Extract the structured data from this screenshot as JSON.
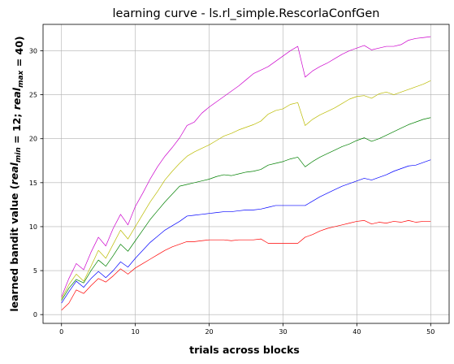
{
  "chart_data": {
    "type": "line",
    "title": "learning curve - ls.rl_simple.RescorlaConfGen",
    "xlabel": "trials across blocks",
    "ylabel": "learned bandit value (real_min = 12; real_max = 40)",
    "xlim": [
      -2.5,
      52.5
    ],
    "ylim": [
      -1,
      33
    ],
    "xticks": [
      0,
      10,
      20,
      30,
      40,
      50
    ],
    "yticks": [
      0,
      5,
      10,
      15,
      20,
      25,
      30
    ],
    "grid": true,
    "x": [
      0,
      1,
      2,
      3,
      4,
      5,
      6,
      7,
      8,
      9,
      10,
      11,
      12,
      13,
      14,
      15,
      16,
      17,
      18,
      19,
      20,
      21,
      22,
      23,
      24,
      25,
      26,
      27,
      28,
      29,
      30,
      31,
      32,
      33,
      34,
      35,
      36,
      37,
      38,
      39,
      40,
      41,
      42,
      43,
      44,
      45,
      46,
      47,
      48,
      49,
      50
    ],
    "series": [
      {
        "color": "#ff0000",
        "values": [
          0.5,
          1.3,
          2.8,
          2.4,
          3.3,
          4.1,
          3.7,
          4.4,
          5.2,
          4.6,
          5.3,
          5.8,
          6.3,
          6.8,
          7.3,
          7.7,
          8.0,
          8.3,
          8.3,
          8.4,
          8.5,
          8.5,
          8.5,
          8.4,
          8.5,
          8.5,
          8.5,
          8.6,
          8.1,
          8.1,
          8.1,
          8.1,
          8.1,
          8.8,
          9.1,
          9.5,
          9.8,
          10.0,
          10.2,
          10.4,
          10.6,
          10.7,
          10.3,
          10.5,
          10.4,
          10.6,
          10.5,
          10.7,
          10.5,
          10.6,
          10.6
        ]
      },
      {
        "color": "#0000ff",
        "values": [
          1.3,
          2.6,
          3.8,
          3.1,
          4.1,
          4.9,
          4.2,
          5.0,
          6.0,
          5.4,
          6.4,
          7.3,
          8.2,
          8.9,
          9.6,
          10.1,
          10.6,
          11.2,
          11.3,
          11.4,
          11.5,
          11.6,
          11.7,
          11.7,
          11.8,
          11.9,
          11.9,
          12.0,
          12.2,
          12.4,
          12.4,
          12.4,
          12.4,
          12.4,
          12.9,
          13.4,
          13.8,
          14.2,
          14.6,
          14.9,
          15.2,
          15.5,
          15.3,
          15.6,
          15.9,
          16.3,
          16.6,
          16.9,
          17.0,
          17.3,
          17.6
        ]
      },
      {
        "color": "#008000",
        "values": [
          1.6,
          3.0,
          4.0,
          3.6,
          5.0,
          6.2,
          5.5,
          6.7,
          8.0,
          7.2,
          8.4,
          9.6,
          10.8,
          11.8,
          12.8,
          13.7,
          14.6,
          14.8,
          15.0,
          15.2,
          15.4,
          15.7,
          15.9,
          15.8,
          16.0,
          16.2,
          16.3,
          16.5,
          17.0,
          17.2,
          17.4,
          17.7,
          17.9,
          16.8,
          17.4,
          17.9,
          18.3,
          18.7,
          19.1,
          19.4,
          19.8,
          20.1,
          19.7,
          20.0,
          20.4,
          20.8,
          21.2,
          21.6,
          21.9,
          22.2,
          22.4
        ]
      },
      {
        "color": "#bbbb00",
        "values": [
          1.8,
          3.4,
          4.6,
          3.8,
          5.5,
          7.3,
          6.4,
          8.0,
          9.6,
          8.6,
          10.0,
          11.4,
          12.8,
          14.0,
          15.3,
          16.3,
          17.2,
          18.0,
          18.5,
          18.9,
          19.3,
          19.8,
          20.3,
          20.6,
          21.0,
          21.3,
          21.6,
          22.0,
          22.8,
          23.2,
          23.4,
          23.9,
          24.1,
          21.5,
          22.2,
          22.7,
          23.1,
          23.5,
          24.0,
          24.5,
          24.8,
          24.9,
          24.6,
          25.1,
          25.3,
          25.0,
          25.3,
          25.6,
          25.9,
          26.2,
          26.6
        ]
      },
      {
        "color": "#cc00cc",
        "values": [
          2.0,
          4.1,
          5.8,
          5.1,
          7.1,
          8.8,
          7.8,
          9.8,
          11.4,
          10.2,
          12.3,
          13.8,
          15.4,
          16.8,
          18.0,
          19.0,
          20.1,
          21.5,
          21.9,
          22.9,
          23.6,
          24.2,
          24.8,
          25.4,
          26.0,
          26.7,
          27.4,
          27.8,
          28.2,
          28.8,
          29.4,
          30.0,
          30.5,
          27.0,
          27.7,
          28.2,
          28.6,
          29.1,
          29.6,
          30.0,
          30.3,
          30.6,
          30.1,
          30.3,
          30.5,
          30.5,
          30.7,
          31.2,
          31.4,
          31.5,
          31.6
        ]
      }
    ]
  }
}
